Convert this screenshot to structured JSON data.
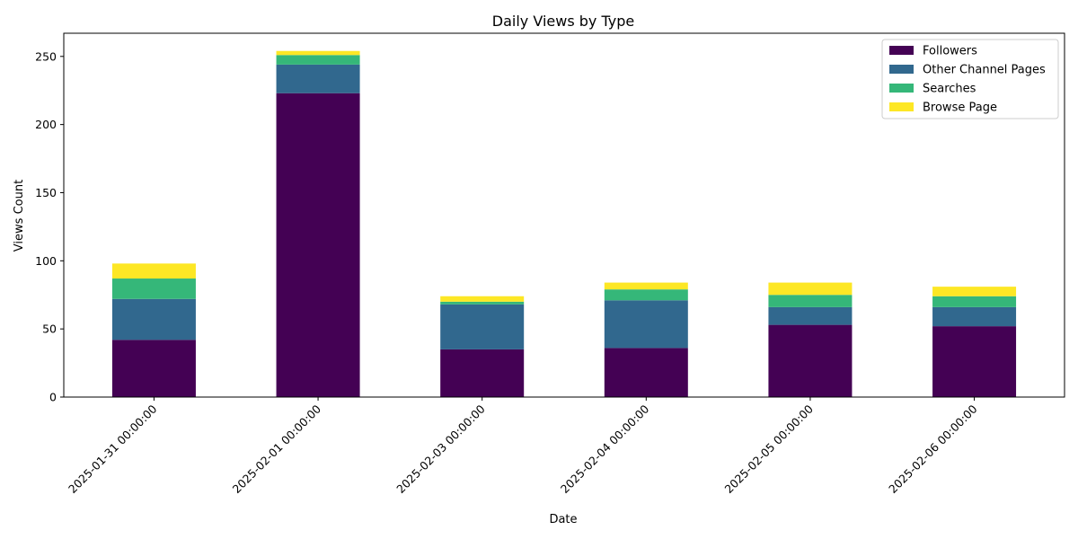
{
  "chart_data": {
    "type": "bar",
    "stacked": true,
    "title": "Daily Views by Type",
    "xlabel": "Date",
    "ylabel": "Views Count",
    "ylim": [
      0,
      267
    ],
    "yticks": [
      0,
      50,
      100,
      150,
      200,
      250
    ],
    "categories": [
      "2025-01-31 00:00:00",
      "2025-02-01 00:00:00",
      "2025-02-03 00:00:00",
      "2025-02-04 00:00:00",
      "2025-02-05 00:00:00",
      "2025-02-06 00:00:00"
    ],
    "series": [
      {
        "name": "Followers",
        "color": "#440154",
        "values": [
          42,
          223,
          35,
          36,
          53,
          52
        ]
      },
      {
        "name": "Other Channel Pages",
        "color": "#31688e",
        "values": [
          30,
          21,
          33,
          35,
          13,
          14
        ]
      },
      {
        "name": "Searches",
        "color": "#35b779",
        "values": [
          15,
          7,
          2,
          8,
          9,
          8
        ]
      },
      {
        "name": "Browse Page",
        "color": "#fde725",
        "values": [
          11,
          3,
          4,
          5,
          9,
          7
        ]
      }
    ],
    "legend_position": "top-right",
    "grid": false
  }
}
